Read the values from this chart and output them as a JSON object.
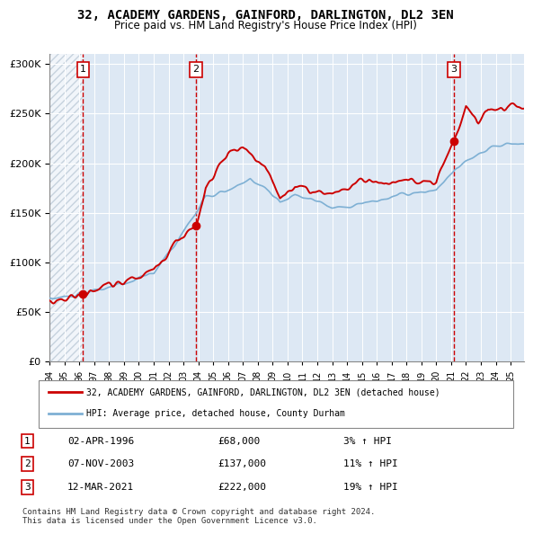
{
  "title": "32, ACADEMY GARDENS, GAINFORD, DARLINGTON, DL2 3EN",
  "subtitle": "Price paid vs. HM Land Registry's House Price Index (HPI)",
  "sale_dates": [
    "1996-04-02",
    "2003-11-07",
    "2021-03-12"
  ],
  "sale_prices": [
    68000,
    137000,
    222000
  ],
  "sale_labels": [
    "1",
    "2",
    "3"
  ],
  "sale_info": [
    "02-APR-1996    £68,000    3% ↑ HPI",
    "07-NOV-2003    £137,000    11% ↑ HPI",
    "12-MAR-2021    £222,000    19% ↑ HPI"
  ],
  "legend_line1": "32, ACADEMY GARDENS, GAINFORD, DARLINGTON, DL2 3EN (detached house)",
  "legend_line2": "HPI: Average price, detached house, County Durham",
  "footnote": "Contains HM Land Registry data © Crown copyright and database right 2024.\nThis data is licensed under the Open Government Licence v3.0.",
  "red_line_color": "#cc0000",
  "blue_line_color": "#7eb0d4",
  "hatch_color": "#c8d8e8",
  "bg_color": "#dde8f4",
  "grid_color": "#aaaacc",
  "dashed_color": "#cc0000",
  "ylim": [
    0,
    310000
  ],
  "yticks": [
    0,
    50000,
    100000,
    150000,
    200000,
    250000,
    300000
  ],
  "ytick_labels": [
    "£0",
    "£50K",
    "£100K",
    "£150K",
    "£200K",
    "£250K",
    "£300K"
  ]
}
